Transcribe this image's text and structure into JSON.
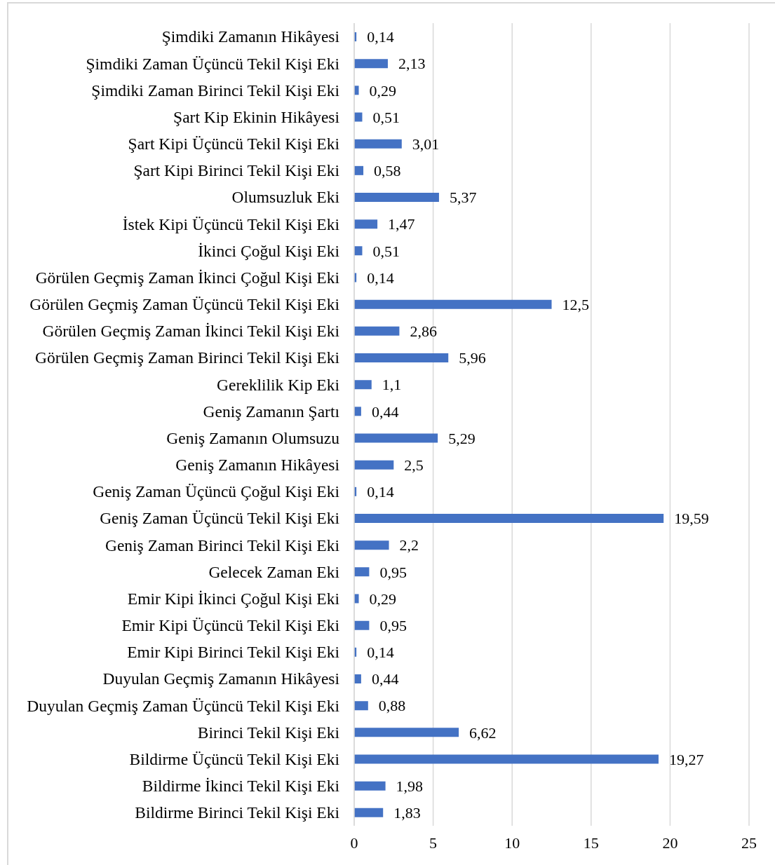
{
  "chart_data": {
    "type": "bar",
    "orientation": "horizontal",
    "categories": [
      "Şimdiki Zamanın Hikâyesi",
      "Şimdiki Zaman Üçüncü Tekil Kişi Eki",
      "Şimdiki Zaman Birinci Tekil Kişi Eki",
      "Şart Kip Ekinin Hikâyesi",
      "Şart Kipi Üçüncü Tekil Kişi Eki",
      "Şart Kipi Birinci Tekil Kişi Eki",
      "Olumsuzluk Eki",
      "İstek Kipi Üçüncü Tekil Kişi Eki",
      "İkinci Çoğul Kişi Eki",
      "Görülen Geçmiş Zaman İkinci Çoğul Kişi Eki",
      "Görülen Geçmiş Zaman Üçüncü Tekil Kişi Eki",
      "Görülen Geçmiş Zaman İkinci Tekil Kişi Eki",
      "Görülen Geçmiş Zaman Birinci Tekil Kişi Eki",
      "Gereklilik Kip Eki",
      "Geniş Zamanın Şartı",
      "Geniş Zamanın Olumsuzu",
      "Geniş Zamanın Hikâyesi",
      "Geniş Zaman Üçüncü Çoğul Kişi Eki",
      "Geniş Zaman Üçüncü Tekil Kişi Eki",
      "Geniş Zaman Birinci Tekil Kişi Eki",
      "Gelecek Zaman Eki",
      "Emir Kipi İkinci Çoğul Kişi Eki",
      "Emir Kipi Üçüncü Tekil Kişi Eki",
      "Emir Kipi Birinci Tekil Kişi Eki",
      "Duyulan Geçmiş Zamanın Hikâyesi",
      "Duyulan Geçmiş Zaman Üçüncü Tekil Kişi Eki",
      "Birinci Tekil Kişi Eki",
      "Bildirme Üçüncü Tekil Kişi Eki",
      "Bildirme İkinci Tekil Kişi Eki",
      "Bildirme Birinci Tekil Kişi Eki"
    ],
    "values": [
      0.14,
      2.13,
      0.29,
      0.51,
      3.01,
      0.58,
      5.37,
      1.47,
      0.51,
      0.14,
      12.5,
      2.86,
      5.96,
      1.1,
      0.44,
      5.29,
      2.5,
      0.14,
      19.59,
      2.2,
      0.95,
      0.29,
      0.95,
      0.14,
      0.44,
      0.88,
      6.62,
      19.27,
      1.98,
      1.83
    ],
    "value_labels": [
      "0,14",
      "2,13",
      "0,29",
      "0,51",
      "3,01",
      "0,58",
      "5,37",
      "1,47",
      "0,51",
      "0,14",
      "12,5",
      "2,86",
      "5,96",
      "1,1",
      "0,44",
      "5,29",
      "2,5",
      "0,14",
      "19,59",
      "2,2",
      "0,95",
      "0,29",
      "0,95",
      "0,14",
      "0,44",
      "0,88",
      "6,62",
      "19,27",
      "1,98",
      "1,83"
    ],
    "color": "#4472c4",
    "xlim": [
      0,
      25
    ],
    "xticks": [
      0,
      5,
      10,
      15,
      20,
      25
    ],
    "grid": "x"
  }
}
